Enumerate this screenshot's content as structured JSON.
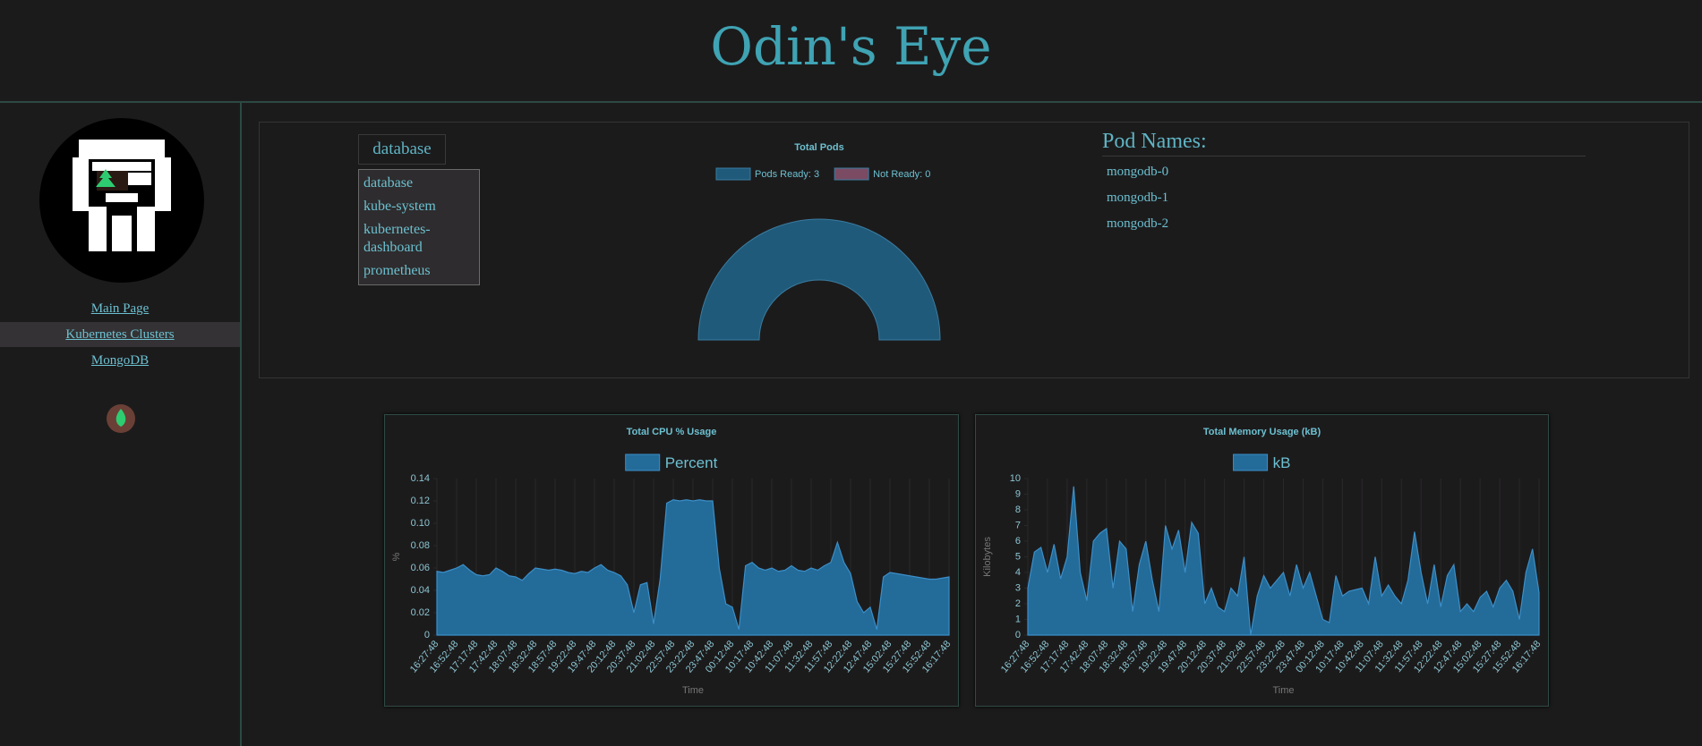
{
  "header": {
    "title": "Odin's Eye"
  },
  "nav": {
    "links": [
      "Main Page",
      "Kubernetes Clusters",
      "MongoDB"
    ],
    "active": 1
  },
  "namespace": {
    "selected": "database",
    "options": [
      "database",
      "kube-system",
      "kubernetes-dashboard",
      "prometheus"
    ]
  },
  "pod_names": {
    "title": "Pod Names:",
    "items": [
      "mongodb-0",
      "mongodb-1",
      "mongodb-2"
    ]
  },
  "chart_data": [
    {
      "type": "doughnut",
      "title": "Total Pods",
      "semicircle": true,
      "categories": [
        "Pods Ready: 3",
        "Not Ready: 0"
      ],
      "values": [
        3,
        0
      ],
      "colors": [
        "#1f5a7a",
        "#7a4b63"
      ]
    },
    {
      "type": "area",
      "title": "Total CPU % Usage",
      "legend": "Percent",
      "color": "#236b99",
      "ylabel": "%",
      "xlabel": "Time",
      "xgrid": true,
      "ylim": [
        0,
        0.14
      ],
      "yticks": [
        0,
        0.02,
        0.04,
        0.06,
        0.08,
        {
          "value": 0.1,
          "label": "0.10"
        },
        0.12,
        0.14
      ],
      "categories": [
        "16:27:48",
        null,
        null,
        "16:52:48",
        null,
        null,
        "17:17:48",
        null,
        null,
        "17:42:48",
        null,
        null,
        "18:07:48",
        null,
        null,
        "18:32:48",
        null,
        null,
        "18:57:48",
        null,
        null,
        "19:22:48",
        null,
        null,
        "19:47:48",
        null,
        null,
        "20:12:48",
        null,
        null,
        "20:37:48",
        null,
        null,
        "21:02:48",
        null,
        null,
        "22:57:48",
        null,
        null,
        "23:22:48",
        null,
        null,
        "23:47:48",
        null,
        null,
        "00:12:48",
        null,
        null,
        "10:17:48",
        null,
        null,
        "10:42:48",
        null,
        null,
        "11:07:48",
        null,
        null,
        "11:32:48",
        null,
        null,
        "11:57:48",
        null,
        null,
        "12:22:48",
        null,
        null,
        "12:47:48",
        null,
        null,
        "15:02:48",
        null,
        null,
        "15:27:48",
        null,
        null,
        "15:52:48",
        null,
        null,
        "16:17:48"
      ],
      "values": [
        0.057,
        0.056,
        0.058,
        0.06,
        0.063,
        0.058,
        0.054,
        0.053,
        0.054,
        0.06,
        0.057,
        0.053,
        0.052,
        0.049,
        0.055,
        0.06,
        0.059,
        0.058,
        0.059,
        0.058,
        0.056,
        0.055,
        0.057,
        0.056,
        0.06,
        0.063,
        0.058,
        0.056,
        0.053,
        0.045,
        0.02,
        0.045,
        0.047,
        0.01,
        0.05,
        0.118,
        0.121,
        0.12,
        0.121,
        0.12,
        0.121,
        0.12,
        0.12,
        0.06,
        0.028,
        0.025,
        0.005,
        0.062,
        0.065,
        0.06,
        0.058,
        0.06,
        0.057,
        0.058,
        0.062,
        0.058,
        0.057,
        0.06,
        0.058,
        0.062,
        0.065,
        0.083,
        0.065,
        0.055,
        0.03,
        0.02,
        0.025,
        0.005,
        0.052,
        0.056,
        0.055,
        0.054,
        0.053,
        0.052,
        0.051,
        0.05,
        0.05,
        0.051,
        0.052
      ]
    },
    {
      "type": "area",
      "title": "Total Memory Usage (kB)",
      "legend": "kB",
      "color": "#236b99",
      "ylabel": "Kilobytes",
      "xlabel": "Time",
      "xgrid": true,
      "ylim": [
        0,
        10
      ],
      "yticks": [
        0,
        1,
        2,
        3,
        4,
        5,
        6,
        7,
        8,
        9,
        10
      ],
      "categories": [
        "16:27:48",
        null,
        null,
        "16:52:48",
        null,
        null,
        "17:17:48",
        null,
        null,
        "17:42:48",
        null,
        null,
        "18:07:48",
        null,
        null,
        "18:32:48",
        null,
        null,
        "18:57:48",
        null,
        null,
        "19:22:48",
        null,
        null,
        "19:47:48",
        null,
        null,
        "20:12:48",
        null,
        null,
        "20:37:48",
        null,
        null,
        "21:02:48",
        null,
        null,
        "22:57:48",
        null,
        null,
        "23:22:48",
        null,
        null,
        "23:47:48",
        null,
        null,
        "00:12:48",
        null,
        null,
        "10:17:48",
        null,
        null,
        "10:42:48",
        null,
        null,
        "11:07:48",
        null,
        null,
        "11:32:48",
        null,
        null,
        "11:57:48",
        null,
        null,
        "12:22:48",
        null,
        null,
        "12:47:48",
        null,
        null,
        "15:02:48",
        null,
        null,
        "15:27:48",
        null,
        null,
        "15:52:48",
        null,
        null,
        "16:17:48"
      ],
      "values": [
        3.0,
        5.3,
        5.6,
        4.0,
        5.8,
        3.6,
        5.0,
        9.5,
        4.0,
        2.2,
        6.0,
        6.5,
        6.8,
        3.0,
        6.0,
        5.5,
        1.5,
        4.5,
        6.0,
        3.5,
        1.5,
        7.0,
        5.5,
        6.7,
        4.0,
        7.2,
        6.5,
        2.0,
        3.0,
        1.8,
        1.5,
        3.0,
        2.5,
        5.0,
        0.0,
        2.5,
        3.8,
        3.0,
        3.5,
        4.0,
        2.5,
        4.5,
        3.0,
        4.0,
        2.5,
        1.0,
        0.8,
        3.8,
        2.5,
        2.8,
        2.9,
        3.0,
        2.0,
        5.0,
        2.5,
        3.2,
        2.5,
        2.0,
        3.5,
        6.6,
        4.0,
        2.0,
        4.5,
        1.8,
        3.8,
        4.5,
        1.5,
        2.0,
        1.5,
        2.4,
        2.8,
        1.8,
        3.0,
        3.5,
        2.8,
        1.0,
        4.0,
        5.5,
        2.7
      ]
    }
  ]
}
